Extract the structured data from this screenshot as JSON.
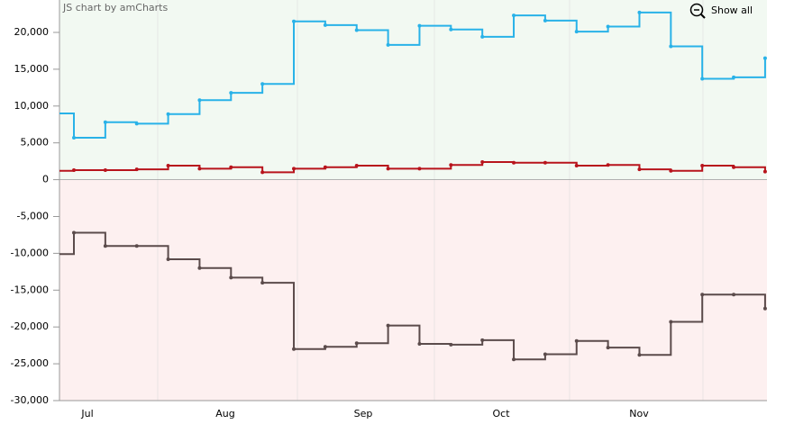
{
  "chart_data": {
    "type": "step-line",
    "credit": "JS chart by amCharts",
    "zoom_button": "Show all",
    "categories": [
      null,
      null,
      null,
      null,
      null,
      null,
      null,
      null,
      null,
      null,
      null,
      null,
      null,
      null,
      null,
      null,
      null,
      null,
      null,
      null,
      null,
      null,
      null,
      null
    ],
    "month_labels": [
      "Jul",
      "Aug",
      "Sep",
      "Oct",
      "Nov"
    ],
    "ylim": [
      -30000,
      24400
    ],
    "yticks": [
      {
        "value": -30000,
        "label": "-30,000"
      },
      {
        "value": -25000,
        "label": "-25,000"
      },
      {
        "value": -20000,
        "label": "-20,000"
      },
      {
        "value": -15000,
        "label": "-15,000"
      },
      {
        "value": -10000,
        "label": "-10,000"
      },
      {
        "value": -5000,
        "label": "-5,000"
      },
      0,
      {
        "value": 5000,
        "label": "5,000"
      },
      {
        "value": 10000,
        "label": "10,000"
      },
      {
        "value": 15000,
        "label": "15,000"
      },
      {
        "value": 20000,
        "label": "20,000"
      }
    ],
    "positive_fill": "#f2f9f2",
    "negative_fill": "#fdf0f0",
    "series": [
      {
        "color": "#29b2e8",
        "values": [
          9000,
          5700,
          7800,
          7600,
          8900,
          10800,
          11800,
          13000,
          21500,
          21000,
          20300,
          18300,
          20900,
          20400,
          19400,
          22300,
          21600,
          20100,
          20800,
          22700,
          18100,
          13700,
          13900,
          16500
        ]
      },
      {
        "color": "#b8141c",
        "values": [
          1200,
          1300,
          1300,
          1400,
          1900,
          1500,
          1700,
          1000,
          1500,
          1700,
          1900,
          1500,
          1500,
          2000,
          2400,
          2300,
          2300,
          1900,
          2000,
          1400,
          1200,
          1900,
          1700,
          1100
        ]
      },
      {
        "color": "#5b4b4b",
        "values": [
          -10100,
          -7200,
          -9000,
          -9000,
          -10800,
          -12000,
          -13300,
          -14000,
          -23000,
          -22700,
          -22200,
          -19800,
          -22300,
          -22400,
          -21800,
          -24400,
          -23700,
          -21900,
          -22800,
          -23800,
          -19300,
          -15600,
          -15600,
          -17500
        ]
      }
    ]
  }
}
